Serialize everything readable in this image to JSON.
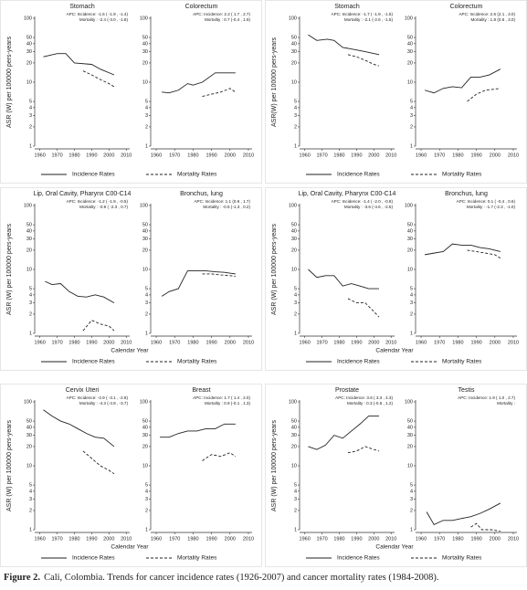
{
  "chart_data": [
    {
      "type": "line",
      "ylabel": "ASR (W)  per 100000 pers-years",
      "series_names": [
        "Incidence Rates",
        "Mortality Rates"
      ],
      "dashed": [
        false,
        true
      ],
      "color": "#222222",
      "log_y": true,
      "ylim": [
        1,
        100
      ],
      "yticks": [
        1,
        2,
        3,
        4,
        5,
        10,
        20,
        30,
        40,
        50,
        100
      ],
      "xlim": [
        1957,
        2012
      ],
      "xticks": [
        1960,
        1970,
        1980,
        1990,
        2000,
        2010
      ],
      "panels": [
        {
          "title": "Stomach",
          "annotations": [
            "APC: Incidence: -1.6 ( -1.9 , -1.4)",
            "Mortality : -2.4 (-3.0 , -1.8)"
          ],
          "series": [
            {
              "x": [
                1962,
                1970,
                1975,
                1980,
                1990,
                1995,
                2003
              ],
              "values": [
                25,
                28,
                28,
                20,
                19,
                16,
                13
              ]
            },
            {
              "x": [
                1985,
                1990,
                1995,
                2000,
                2003
              ],
              "values": [
                15,
                13,
                11,
                9.5,
                8.5
              ]
            }
          ]
        },
        {
          "title": "Colorectum",
          "annotations": [
            "APC: Incidence: 2.2 ( 1.7 , 2.7)",
            "Mortality : 0.7 (-0.4 , 1.9)"
          ],
          "series": [
            {
              "x": [
                1963,
                1967,
                1972,
                1977,
                1980,
                1985,
                1992,
                2003
              ],
              "values": [
                7,
                6.8,
                7.5,
                9.5,
                9,
                10,
                14,
                14
              ]
            },
            {
              "x": [
                1985,
                1990,
                1995,
                2000,
                2003
              ],
              "values": [
                6,
                6.5,
                7,
                8,
                7
              ]
            }
          ]
        }
      ]
    },
    {
      "type": "line",
      "ylabel": "ASR(W) per 100000 pers-years",
      "series_names": [
        "Incidence Rates",
        "Mortality Rates"
      ],
      "dashed": [
        false,
        true
      ],
      "color": "#222222",
      "log_y": true,
      "ylim": [
        1,
        100
      ],
      "yticks": [
        1,
        2,
        3,
        4,
        5,
        10,
        20,
        30,
        40,
        50,
        100
      ],
      "xlim": [
        1957,
        2012
      ],
      "xticks": [
        1960,
        1970,
        1980,
        1990,
        2000,
        2010
      ],
      "panels": [
        {
          "title": "Stomach",
          "annotations": [
            "APC: Incidence: -1.7 ( -1.9 , -1.5)",
            "Mortality : -2.1 (-2.6 , -1.5)"
          ],
          "series": [
            {
              "x": [
                1962,
                1967,
                1973,
                1977,
                1982,
                1990,
                1995,
                2003
              ],
              "values": [
                55,
                45,
                47,
                45,
                35,
                32,
                30,
                27
              ]
            },
            {
              "x": [
                1985,
                1990,
                1995,
                2000,
                2003
              ],
              "values": [
                27,
                25,
                22,
                19,
                18
              ]
            }
          ]
        },
        {
          "title": "Colorectum",
          "annotations": [
            "APC: Incidence: 2.6 (2.1 , 3.0)",
            "Mortality : 1.8 (0.6 , 3.0)"
          ],
          "series": [
            {
              "x": [
                1962,
                1967,
                1972,
                1977,
                1982,
                1987,
                1992,
                1997,
                2003
              ],
              "values": [
                7.5,
                6.8,
                8,
                8.5,
                8.2,
                12,
                12,
                13,
                16
              ]
            },
            {
              "x": [
                1985,
                1990,
                1995,
                2000,
                2003
              ],
              "values": [
                5,
                6.5,
                7.5,
                7.8,
                8
              ]
            }
          ]
        }
      ]
    },
    {
      "type": "line",
      "ylabel": "ASR (W) per 100000 pers-years",
      "xlabel": "Calendar Year",
      "series_names": [
        "Incidence Rates",
        "Mortality Rates"
      ],
      "dashed": [
        false,
        true
      ],
      "color": "#222222",
      "log_y": true,
      "ylim": [
        1,
        100
      ],
      "yticks": [
        1,
        2,
        3,
        4,
        5,
        10,
        20,
        30,
        40,
        50,
        100
      ],
      "xlim": [
        1957,
        2012
      ],
      "xticks": [
        1960,
        1970,
        1980,
        1990,
        2000,
        2010
      ],
      "panels": [
        {
          "title": "Lip, Oral Cavity, Pharynx C00-C14",
          "annotations": [
            "APC: Incidence: -1.2 ( -1.9 , -0.5)",
            "Mortality : -0.9  ( -2.3 , 0.7)"
          ],
          "series": [
            {
              "x": [
                1963,
                1967,
                1972,
                1977,
                1982,
                1987,
                1992,
                1997,
                2003
              ],
              "values": [
                6.5,
                5.8,
                6,
                4.5,
                3.8,
                3.7,
                4,
                3.7,
                3
              ]
            },
            {
              "x": [
                1985,
                1990,
                1995,
                2000,
                2003
              ],
              "values": [
                1.1,
                1.6,
                1.4,
                1.3,
                1.1
              ]
            }
          ]
        },
        {
          "title": "Bronchus, lung",
          "annotations": [
            "APC: Incidence: 1.1 (0.6 , 1.7)",
            "Mortality : -0.5 (-1.3 , 0.2)"
          ],
          "series": [
            {
              "x": [
                1963,
                1967,
                1972,
                1977,
                1982,
                1987,
                1992,
                1997,
                2003
              ],
              "values": [
                3.8,
                4.5,
                5,
                9.5,
                9.5,
                9.5,
                9.2,
                9,
                8.5
              ]
            },
            {
              "x": [
                1985,
                1990,
                1995,
                2000,
                2003
              ],
              "values": [
                8.5,
                8.5,
                8.2,
                8,
                7.8
              ]
            }
          ]
        }
      ]
    },
    {
      "type": "line",
      "ylabel": "ASR (W) per 100000 pers-years",
      "xlabel": "Calendar Year",
      "series_names": [
        "Incidence Rates",
        "Mortality Rates"
      ],
      "dashed": [
        false,
        true
      ],
      "color": "#222222",
      "log_y": true,
      "ylim": [
        1,
        100
      ],
      "yticks": [
        1,
        2,
        3,
        4,
        5,
        10,
        20,
        30,
        40,
        50,
        100
      ],
      "xlim": [
        1957,
        2012
      ],
      "xticks": [
        1960,
        1970,
        1980,
        1990,
        2000,
        2010
      ],
      "panels": [
        {
          "title": "Lip, Oral Cavity, Pharynx C00-C14",
          "annotations": [
            "APC: Incidence: -1.4 ( -2.0 , -0.8)",
            "Mortality : -3.6 (-4.6 , -2.5)"
          ],
          "series": [
            {
              "x": [
                1962,
                1967,
                1972,
                1977,
                1982,
                1987,
                1992,
                1997,
                2003
              ],
              "values": [
                10,
                7.5,
                8,
                8,
                5.5,
                6,
                5.5,
                5,
                5
              ]
            },
            {
              "x": [
                1985,
                1990,
                1995,
                2000,
                2003
              ],
              "values": [
                3.5,
                3,
                3,
                2.2,
                1.8
              ]
            }
          ]
        },
        {
          "title": "Bronchus, lung",
          "annotations": [
            "APC: Incidence: 0.1 ( -0.4 , 0.6)",
            "Mortality : -1.7 (-2.3 , -1.0)"
          ],
          "series": [
            {
              "x": [
                1962,
                1967,
                1972,
                1977,
                1982,
                1987,
                1992,
                1997,
                2003
              ],
              "values": [
                17,
                18,
                19,
                25,
                24,
                24,
                22,
                21,
                19
              ]
            },
            {
              "x": [
                1985,
                1990,
                1995,
                2000,
                2003
              ],
              "values": [
                20,
                19,
                18,
                17,
                15
              ]
            }
          ]
        }
      ]
    },
    {
      "type": "line",
      "ylabel": "ASR (W) per 100000 pers-years",
      "xlabel": "Calendar Year",
      "series_names": [
        "Incidence Rates",
        "Mortality Rates"
      ],
      "dashed": [
        false,
        true
      ],
      "color": "#222222",
      "log_y": true,
      "ylim": [
        1,
        100
      ],
      "yticks": [
        1,
        2,
        3,
        4,
        5,
        10,
        20,
        30,
        40,
        50,
        100
      ],
      "xlim": [
        1957,
        2012
      ],
      "xticks": [
        1960,
        1970,
        1980,
        1990,
        2000,
        2010
      ],
      "panels": [
        {
          "title": "Cervix Uteri",
          "annotations": [
            "APC: Incidence: -2.9 ( -3.1 , -2.8)",
            "Mortality : -4.3 (-4.9 , -3.7)"
          ],
          "series": [
            {
              "x": [
                1962,
                1967,
                1972,
                1977,
                1982,
                1987,
                1992,
                1997,
                2003
              ],
              "values": [
                75,
                60,
                50,
                45,
                38,
                32,
                28,
                27,
                20
              ]
            },
            {
              "x": [
                1985,
                1990,
                1995,
                2000,
                2003
              ],
              "values": [
                17,
                13,
                10,
                8.5,
                7.5
              ]
            }
          ]
        },
        {
          "title": "Breast",
          "annotations": [
            "APC: Incidence: 1.7 ( 1.4 , 2.0)",
            "Mortality : 0.9 (-0.1 , 1.3)"
          ],
          "series": [
            {
              "x": [
                1962,
                1967,
                1972,
                1977,
                1982,
                1987,
                1992,
                1997,
                2003
              ],
              "values": [
                28,
                28,
                32,
                35,
                35,
                38,
                38,
                45,
                45
              ]
            },
            {
              "x": [
                1985,
                1990,
                1995,
                2000,
                2003
              ],
              "values": [
                12,
                15,
                14,
                16,
                14
              ]
            }
          ]
        }
      ]
    },
    {
      "type": "line",
      "ylabel": "ASR (W) per 100000 pers-years",
      "xlabel": "Calendar Year",
      "series_names": [
        "Incidence Rates",
        "Mortality Rates"
      ],
      "dashed": [
        false,
        true
      ],
      "color": "#222222",
      "log_y": true,
      "ylim": [
        1,
        100
      ],
      "yticks": [
        1,
        2,
        3,
        4,
        5,
        10,
        20,
        30,
        40,
        50,
        100
      ],
      "xlim": [
        1957,
        2012
      ],
      "xticks": [
        1960,
        1970,
        1980,
        1990,
        2000,
        2010
      ],
      "panels": [
        {
          "title": "Prostate",
          "annotations": [
            "APC: Incidence: 3.6 ( 3.3 , 4.3)",
            "Mortality : 0.3 (-0.5 , 1.2)"
          ],
          "series": [
            {
              "x": [
                1962,
                1967,
                1972,
                1977,
                1982,
                1987,
                1992,
                1997,
                2003
              ],
              "values": [
                20,
                18,
                21,
                30,
                27,
                35,
                45,
                60,
                60
              ]
            },
            {
              "x": [
                1985,
                1990,
                1995,
                2000,
                2003
              ],
              "values": [
                16,
                17,
                20,
                18,
                17
              ]
            }
          ]
        },
        {
          "title": "Testis",
          "annotations": [
            "APC: Incidence: 1.9 ( 1.0 , 2.7)",
            "Mortality :"
          ],
          "series": [
            {
              "x": [
                1963,
                1967,
                1972,
                1977,
                1982,
                1987,
                1992,
                1997,
                2003
              ],
              "values": [
                1.9,
                1.2,
                1.4,
                1.4,
                1.5,
                1.6,
                1.8,
                2.1,
                2.6
              ]
            },
            {
              "x": [
                1987,
                1990,
                1993,
                1998,
                2003
              ],
              "values": [
                1.1,
                1.25,
                1,
                1,
                0.95
              ]
            }
          ]
        }
      ]
    }
  ],
  "caption": {
    "label": "Figure 2.",
    "text": "Cali, Colombia. Trends for cancer incidence rates (1926-2007) and cancer mortality rates (1984-2008)."
  }
}
